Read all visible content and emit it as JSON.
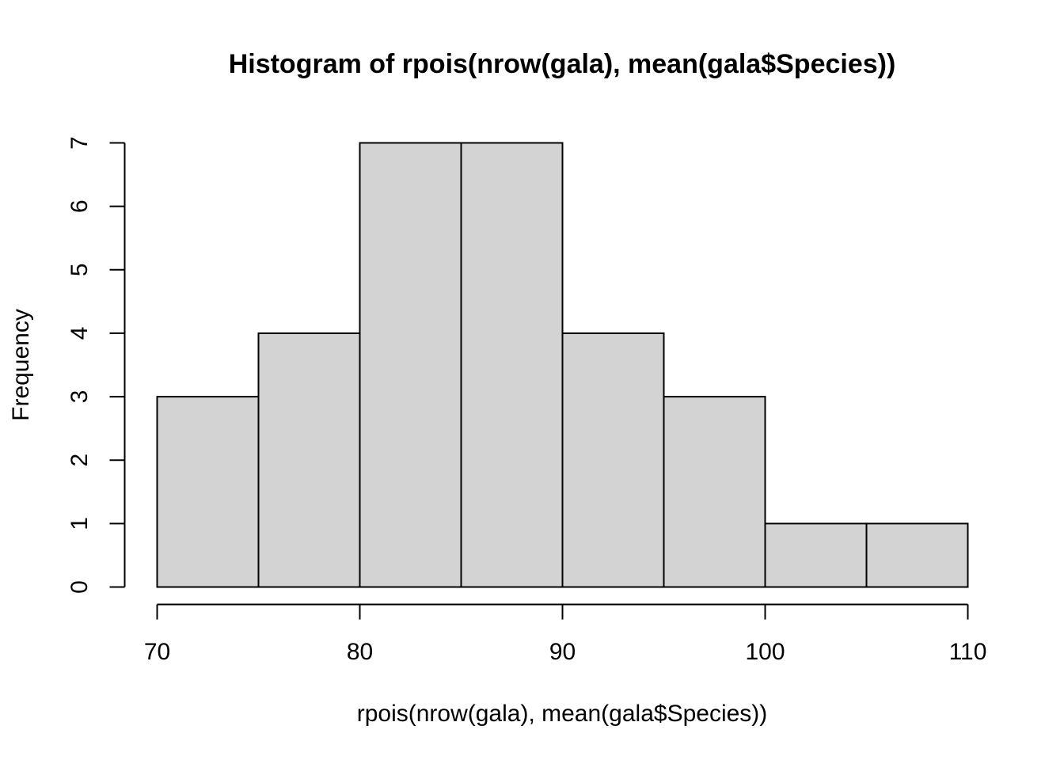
{
  "chart_data": {
    "type": "bar",
    "subtype": "histogram",
    "title": "Histogram of rpois(nrow(gala), mean(gala$Species))",
    "xlabel": "rpois(nrow(gala), mean(gala$Species))",
    "ylabel": "Frequency",
    "bins": [
      {
        "start": 70,
        "end": 75,
        "count": 3
      },
      {
        "start": 75,
        "end": 80,
        "count": 4
      },
      {
        "start": 80,
        "end": 85,
        "count": 7
      },
      {
        "start": 85,
        "end": 90,
        "count": 7
      },
      {
        "start": 90,
        "end": 95,
        "count": 4
      },
      {
        "start": 95,
        "end": 100,
        "count": 3
      },
      {
        "start": 100,
        "end": 105,
        "count": 1
      },
      {
        "start": 105,
        "end": 110,
        "count": 1
      }
    ],
    "xlim": [
      70,
      110
    ],
    "ylim": [
      0,
      7
    ],
    "x_ticks": [
      70,
      80,
      90,
      100,
      110
    ],
    "y_ticks": [
      0,
      1,
      2,
      3,
      4,
      5,
      6,
      7
    ],
    "bar_color": "#d3d3d3",
    "grid": false
  }
}
